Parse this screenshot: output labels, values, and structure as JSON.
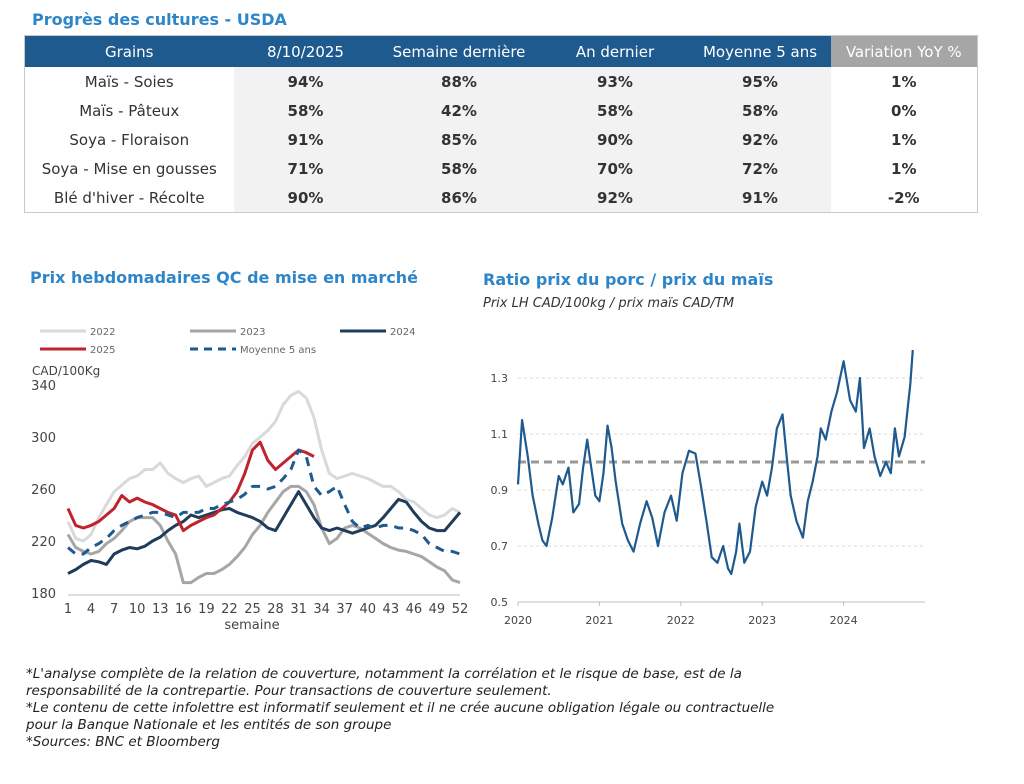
{
  "crop_table": {
    "title": "Progrès des cultures - USDA",
    "headers": [
      "Grains",
      "8/10/2025",
      "Semaine dernière",
      "An dernier",
      "Moyenne 5 ans",
      "Variation YoY %"
    ],
    "rows": [
      {
        "grain": "Maïs - Soies",
        "current": "94%",
        "last_week": "88%",
        "last_year": "93%",
        "avg5": "95%",
        "yoy": "1%",
        "yoy_sign": "pos"
      },
      {
        "grain": "Maïs - Pâteux",
        "current": "58%",
        "last_week": "42%",
        "last_year": "58%",
        "avg5": "58%",
        "yoy": "0%",
        "yoy_sign": "zero"
      },
      {
        "grain": "Soya - Floraison",
        "current": "91%",
        "last_week": "85%",
        "last_year": "90%",
        "avg5": "92%",
        "yoy": "1%",
        "yoy_sign": "pos"
      },
      {
        "grain": "Soya - Mise en gousses",
        "current": "71%",
        "last_week": "58%",
        "last_year": "70%",
        "avg5": "72%",
        "yoy": "1%",
        "yoy_sign": "pos"
      },
      {
        "grain": "Blé d'hiver - Récolte",
        "current": "90%",
        "last_week": "86%",
        "last_year": "92%",
        "avg5": "91%",
        "yoy": "-2%",
        "yoy_sign": "neg"
      }
    ],
    "colors": {
      "header": "#1f5a8f",
      "header_last": "#a6a6a6",
      "positive": "#2e7d1e",
      "negative": "#c00000"
    }
  },
  "chart_data": [
    {
      "type": "line",
      "title": "Prix hebdomadaires QC de mise en marché",
      "ylabel": "CAD/100Kg",
      "xlabel": "semaine",
      "ylim": [
        180,
        340
      ],
      "yticks": [
        180,
        220,
        260,
        300,
        340
      ],
      "xlim": [
        1,
        52
      ],
      "xticks": [
        1,
        4,
        7,
        10,
        13,
        16,
        19,
        22,
        25,
        28,
        31,
        34,
        37,
        40,
        43,
        46,
        49,
        52
      ],
      "grid": false,
      "legend_position": "top",
      "series": [
        {
          "name": "2022",
          "color": "#d9d9d9",
          "dash": false,
          "x": [
            1,
            2,
            3,
            4,
            5,
            6,
            7,
            8,
            9,
            10,
            11,
            12,
            13,
            14,
            15,
            16,
            17,
            18,
            19,
            20,
            21,
            22,
            23,
            24,
            25,
            26,
            27,
            28,
            29,
            30,
            31,
            32,
            33,
            34,
            35,
            36,
            37,
            38,
            39,
            40,
            41,
            42,
            43,
            44,
            45,
            46,
            47,
            48,
            49,
            50,
            51,
            52
          ],
          "values": [
            235,
            222,
            220,
            225,
            238,
            248,
            258,
            263,
            268,
            270,
            275,
            275,
            280,
            272,
            268,
            265,
            268,
            270,
            262,
            265,
            268,
            270,
            278,
            285,
            295,
            300,
            305,
            312,
            325,
            332,
            335,
            330,
            315,
            290,
            272,
            268,
            270,
            272,
            270,
            268,
            265,
            262,
            262,
            258,
            252,
            250,
            245,
            240,
            238,
            240,
            245,
            242
          ]
        },
        {
          "name": "2023",
          "color": "#a6a6a6",
          "dash": false,
          "x": [
            1,
            2,
            3,
            4,
            5,
            6,
            7,
            8,
            9,
            10,
            11,
            12,
            13,
            14,
            15,
            16,
            17,
            18,
            19,
            20,
            21,
            22,
            23,
            24,
            25,
            26,
            27,
            28,
            29,
            30,
            31,
            32,
            33,
            34,
            35,
            36,
            37,
            38,
            39,
            40,
            41,
            42,
            43,
            44,
            45,
            46,
            47,
            48,
            49,
            50,
            51,
            52
          ],
          "values": [
            225,
            215,
            212,
            210,
            212,
            218,
            222,
            228,
            235,
            238,
            238,
            238,
            232,
            220,
            210,
            188,
            188,
            192,
            195,
            195,
            198,
            202,
            208,
            215,
            225,
            232,
            242,
            250,
            258,
            262,
            262,
            258,
            248,
            230,
            218,
            222,
            230,
            232,
            230,
            226,
            222,
            218,
            215,
            213,
            212,
            210,
            208,
            204,
            200,
            197,
            190,
            188
          ]
        },
        {
          "name": "2024",
          "color": "#1f3c5a",
          "dash": false,
          "x": [
            1,
            2,
            3,
            4,
            5,
            6,
            7,
            8,
            9,
            10,
            11,
            12,
            13,
            14,
            15,
            16,
            17,
            18,
            19,
            20,
            21,
            22,
            23,
            24,
            25,
            26,
            27,
            28,
            29,
            30,
            31,
            32,
            33,
            34,
            35,
            36,
            37,
            38,
            39,
            40,
            41,
            42,
            43,
            44,
            45,
            46,
            47,
            48,
            49,
            50,
            51,
            52
          ],
          "values": [
            195,
            198,
            202,
            205,
            204,
            202,
            210,
            213,
            215,
            214,
            216,
            220,
            223,
            228,
            232,
            235,
            240,
            238,
            240,
            242,
            244,
            245,
            242,
            240,
            238,
            235,
            230,
            228,
            238,
            248,
            258,
            248,
            238,
            230,
            228,
            230,
            228,
            226,
            228,
            230,
            232,
            238,
            245,
            252,
            250,
            242,
            235,
            230,
            228,
            228,
            235,
            242
          ]
        },
        {
          "name": "2025",
          "color": "#c0232c",
          "dash": false,
          "x": [
            1,
            2,
            3,
            4,
            5,
            6,
            7,
            8,
            9,
            10,
            11,
            12,
            13,
            14,
            15,
            16,
            17,
            18,
            19,
            20,
            21,
            22,
            23,
            24,
            25,
            26,
            27,
            28,
            29,
            30,
            31,
            32,
            33
          ],
          "values": [
            245,
            232,
            230,
            232,
            235,
            240,
            245,
            255,
            250,
            253,
            250,
            248,
            245,
            242,
            240,
            228,
            232,
            235,
            238,
            240,
            245,
            250,
            258,
            272,
            290,
            296,
            282,
            275,
            280,
            285,
            290,
            288,
            285
          ]
        },
        {
          "name": "Moyenne 5 ans",
          "color": "#1f5a8f",
          "dash": true,
          "x": [
            1,
            2,
            3,
            4,
            5,
            6,
            7,
            8,
            9,
            10,
            11,
            12,
            13,
            14,
            15,
            16,
            17,
            18,
            19,
            20,
            21,
            22,
            23,
            24,
            25,
            26,
            27,
            28,
            29,
            30,
            31,
            32,
            33,
            34,
            35,
            36,
            37,
            38,
            39,
            40,
            41,
            42,
            43,
            44,
            45,
            46,
            47,
            48,
            49,
            50,
            51,
            52
          ],
          "values": [
            215,
            210,
            210,
            215,
            218,
            222,
            228,
            232,
            235,
            238,
            240,
            242,
            242,
            240,
            238,
            242,
            242,
            242,
            245,
            245,
            248,
            250,
            252,
            256,
            262,
            262,
            260,
            262,
            268,
            275,
            290,
            285,
            262,
            255,
            258,
            262,
            248,
            235,
            230,
            232,
            230,
            232,
            232,
            230,
            230,
            228,
            225,
            218,
            215,
            212,
            212,
            210
          ]
        }
      ]
    },
    {
      "type": "line",
      "title": "Ratio prix du porc / prix du maïs",
      "subtitle": "Prix LH CAD/100kg / prix maïs CAD/TM",
      "ylim": [
        0.5,
        1.4
      ],
      "yticks": [
        "0.5",
        "0.7",
        "0.9",
        "1.1",
        "1.3"
      ],
      "xlim": [
        2020.0,
        2025.0
      ],
      "xticks": [
        "2020",
        "2021",
        "2022",
        "2023",
        "2024"
      ],
      "grid": true,
      "reference_line": {
        "value": 1.0,
        "color": "#999999",
        "dash": true
      },
      "series": [
        {
          "color": "#1f5a8f",
          "x": [
            2020.0,
            2020.05,
            2020.12,
            2020.18,
            2020.25,
            2020.3,
            2020.35,
            2020.42,
            2020.5,
            2020.55,
            2020.62,
            2020.68,
            2020.75,
            2020.8,
            2020.85,
            2020.9,
            2020.95,
            2021.0,
            2021.05,
            2021.1,
            2021.15,
            2021.2,
            2021.28,
            2021.35,
            2021.42,
            2021.5,
            2021.58,
            2021.65,
            2021.72,
            2021.8,
            2021.88,
            2021.95,
            2022.02,
            2022.1,
            2022.18,
            2022.25,
            2022.32,
            2022.38,
            2022.45,
            2022.52,
            2022.58,
            2022.62,
            2022.68,
            2022.72,
            2022.78,
            2022.85,
            2022.92,
            2023.0,
            2023.06,
            2023.12,
            2023.18,
            2023.25,
            2023.3,
            2023.35,
            2023.42,
            2023.5,
            2023.56,
            2023.62,
            2023.68,
            2023.72,
            2023.78,
            2023.85,
            2023.92,
            2024.0,
            2024.08,
            2024.15,
            2024.2,
            2024.25,
            2024.32,
            2024.38,
            2024.45,
            2024.52,
            2024.58,
            2024.63,
            2024.68,
            2024.75,
            2024.82,
            2024.85
          ],
          "values": [
            0.92,
            1.15,
            1.02,
            0.88,
            0.78,
            0.72,
            0.7,
            0.8,
            0.95,
            0.92,
            0.98,
            0.82,
            0.85,
            0.98,
            1.08,
            0.98,
            0.88,
            0.86,
            0.96,
            1.13,
            1.05,
            0.93,
            0.78,
            0.72,
            0.68,
            0.78,
            0.86,
            0.8,
            0.7,
            0.82,
            0.88,
            0.79,
            0.96,
            1.04,
            1.03,
            0.91,
            0.78,
            0.66,
            0.64,
            0.7,
            0.62,
            0.6,
            0.68,
            0.78,
            0.64,
            0.68,
            0.84,
            0.93,
            0.88,
            0.98,
            1.12,
            1.17,
            1.02,
            0.88,
            0.79,
            0.73,
            0.86,
            0.93,
            1.02,
            1.12,
            1.08,
            1.18,
            1.25,
            1.36,
            1.22,
            1.18,
            1.3,
            1.05,
            1.12,
            1.02,
            0.95,
            1.0,
            0.96,
            1.12,
            1.02,
            1.09,
            1.28,
            1.4
          ]
        }
      ]
    }
  ],
  "notes": [
    "*L'analyse complète de la relation de couverture, notamment la corrélation et le risque de base, est de la",
    "responsabilité de la contrepartie. Pour transactions de couverture seulement.",
    "*Le contenu de cette infolettre est informatif seulement et il ne crée aucune obligation légale ou contractuelle",
    "pour la Banque Nationale et les entités de son groupe",
    "*Sources: BNC et Bloomberg"
  ]
}
